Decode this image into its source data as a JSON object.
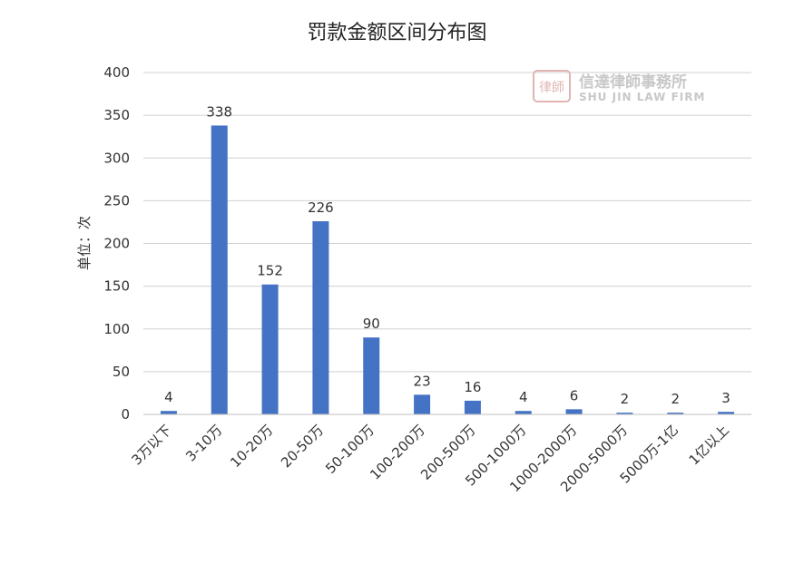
{
  "chart_data": {
    "type": "bar",
    "title": "罚款金额区间分布图",
    "ylabel": "单位：次",
    "xlabel": "",
    "ylim": [
      0,
      400
    ],
    "yticks": [
      0,
      50,
      100,
      150,
      200,
      250,
      300,
      350,
      400
    ],
    "grid": true,
    "categories": [
      "3万以下",
      "3-10万",
      "10-20万",
      "20-50万",
      "50-100万",
      "100-200万",
      "200-500万",
      "500-1000万",
      "1000-2000万",
      "2000-5000万",
      "5000万-1亿",
      "1亿以上"
    ],
    "values": [
      4,
      338,
      152,
      226,
      90,
      23,
      16,
      4,
      6,
      2,
      2,
      3
    ],
    "bar_color": "#4472c4"
  },
  "watermark": {
    "name_cn": "信達律師事務所",
    "name_en": "SHU JIN LAW FIRM",
    "seal_text": "律師"
  }
}
